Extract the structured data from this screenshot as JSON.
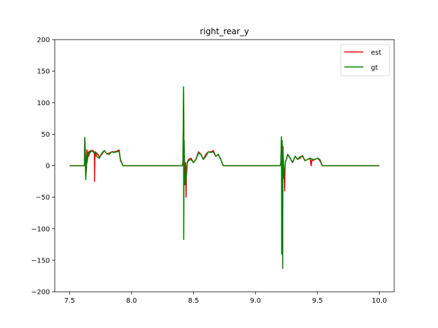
{
  "chart_data": {
    "type": "line",
    "title": "right_rear_y",
    "xlabel": "",
    "ylabel": "",
    "xlim": [
      7.38,
      10.12
    ],
    "ylim": [
      -200,
      200
    ],
    "xticks": [
      7.5,
      8.0,
      8.5,
      9.0,
      9.5,
      10.0
    ],
    "xtick_labels": [
      "7.5",
      "8.0",
      "8.5",
      "9.0",
      "9.5",
      "10.0"
    ],
    "yticks": [
      -200,
      -150,
      -100,
      -50,
      0,
      50,
      100,
      150,
      200
    ],
    "ytick_labels": [
      "−200",
      "−150",
      "−100",
      "−50",
      "0",
      "50",
      "100",
      "150",
      "200"
    ],
    "grid": false,
    "legend_position": "upper right",
    "series": [
      {
        "name": "est",
        "color": "#ff0000",
        "x": [
          7.5,
          7.62,
          7.622,
          7.628,
          7.632,
          7.636,
          7.64,
          7.645,
          7.65,
          7.655,
          7.66,
          7.665,
          7.67,
          7.68,
          7.69,
          7.7,
          7.702,
          7.705,
          7.708,
          7.71,
          7.72,
          7.74,
          7.76,
          7.78,
          7.8,
          7.82,
          7.84,
          7.86,
          7.88,
          7.9,
          7.91,
          7.92,
          7.93,
          8.4,
          8.41,
          8.415,
          8.42,
          8.423,
          8.426,
          8.43,
          8.433,
          8.436,
          8.44,
          8.443,
          8.447,
          8.45,
          8.455,
          8.46,
          8.48,
          8.5,
          8.52,
          8.54,
          8.56,
          8.58,
          8.6,
          8.62,
          8.64,
          8.66,
          8.68,
          8.7,
          8.72,
          8.74,
          9.2,
          9.205,
          9.21,
          9.213,
          9.216,
          9.22,
          9.223,
          9.226,
          9.23,
          9.233,
          9.236,
          9.24,
          9.25,
          9.26,
          9.28,
          9.3,
          9.32,
          9.34,
          9.36,
          9.38,
          9.4,
          9.42,
          9.44,
          9.45,
          9.455,
          9.46,
          9.48,
          9.5,
          9.52,
          9.54,
          10.0
        ],
        "y": [
          0,
          0,
          42,
          20,
          -15,
          -5,
          25,
          10,
          22,
          15,
          23,
          20,
          24,
          24,
          24,
          20,
          -25,
          22,
          15,
          20,
          20,
          14,
          18,
          24,
          19,
          20,
          22,
          22,
          23,
          25,
          8,
          5,
          0,
          0,
          0,
          5,
          118,
          30,
          -10,
          -30,
          -15,
          5,
          -50,
          -5,
          0,
          5,
          8,
          10,
          12,
          5,
          10,
          22,
          18,
          10,
          18,
          22,
          22,
          24,
          15,
          18,
          10,
          0,
          0,
          5,
          42,
          15,
          30,
          -10,
          30,
          -20,
          -10,
          -5,
          -40,
          5,
          10,
          18,
          12,
          5,
          15,
          10,
          12,
          16,
          8,
          10,
          12,
          0,
          10,
          8,
          10,
          12,
          8,
          0,
          0
        ]
      },
      {
        "name": "gt",
        "color": "#008000",
        "x": [
          7.5,
          7.62,
          7.622,
          7.626,
          7.63,
          7.634,
          7.638,
          7.642,
          7.646,
          7.65,
          7.655,
          7.66,
          7.67,
          7.68,
          7.69,
          7.7,
          7.71,
          7.72,
          7.74,
          7.76,
          7.78,
          7.8,
          7.82,
          7.84,
          7.86,
          7.88,
          7.9,
          7.91,
          7.92,
          7.93,
          8.4,
          8.41,
          8.415,
          8.42,
          8.421,
          8.424,
          8.427,
          8.43,
          8.433,
          8.436,
          8.44,
          8.445,
          8.45,
          8.46,
          8.48,
          8.5,
          8.52,
          8.54,
          8.56,
          8.58,
          8.6,
          8.62,
          8.64,
          8.66,
          8.68,
          8.7,
          8.72,
          8.74,
          9.2,
          9.205,
          9.21,
          9.212,
          9.215,
          9.218,
          9.22,
          9.222,
          9.225,
          9.228,
          9.232,
          9.236,
          9.24,
          9.25,
          9.26,
          9.28,
          9.3,
          9.32,
          9.34,
          9.36,
          9.38,
          9.4,
          9.42,
          9.44,
          9.46,
          9.48,
          9.5,
          9.52,
          9.54,
          10.0
        ],
        "y": [
          0,
          0,
          45,
          20,
          -22,
          -5,
          15,
          5,
          20,
          15,
          22,
          20,
          23,
          23,
          22,
          20,
          22,
          14,
          12,
          20,
          24,
          19,
          18,
          22,
          21,
          22,
          23,
          10,
          5,
          0,
          0,
          0,
          5,
          125,
          -117,
          40,
          10,
          -20,
          -30,
          -15,
          -20,
          -10,
          5,
          8,
          10,
          5,
          10,
          20,
          18,
          10,
          15,
          22,
          21,
          22,
          15,
          18,
          10,
          0,
          0,
          5,
          46,
          -140,
          40,
          30,
          -163,
          25,
          10,
          -20,
          -10,
          -5,
          5,
          10,
          18,
          12,
          5,
          15,
          10,
          14,
          15,
          8,
          10,
          12,
          10,
          10,
          12,
          10,
          0,
          0
        ]
      }
    ]
  }
}
